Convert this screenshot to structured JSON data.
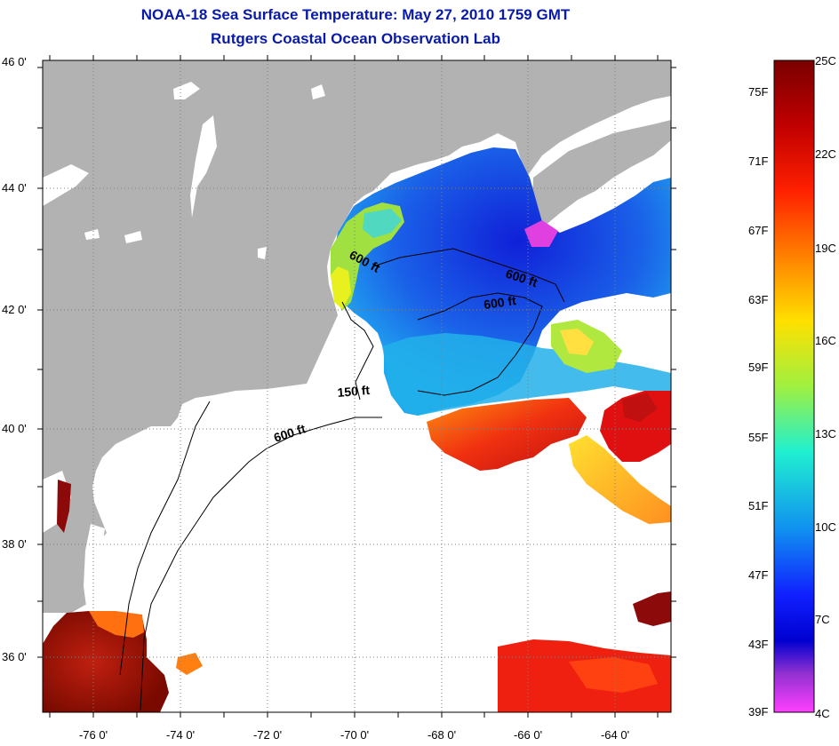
{
  "title": {
    "line1": "NOAA-18 Sea Surface Temperature:  May 27, 2010 1759 GMT",
    "line2": "Rutgers Coastal Ocean Observation Lab"
  },
  "map": {
    "lat_labels": [
      "46 0'",
      "44 0'",
      "42 0'",
      "40 0'",
      "38 0'",
      "36 0'"
    ],
    "lon_labels": [
      "-76 0'",
      "-74 0'",
      "-72 0'",
      "-70 0'",
      "-68 0'",
      "-66 0'",
      "-64 0'"
    ],
    "contour_labels": [
      "600 ft",
      "600 ft",
      "600 ft",
      "150 ft",
      "600 ft"
    ],
    "colors": {
      "land": "#b2b2b2",
      "no_data": "#ffffff",
      "cold": "#1530e0",
      "mid": "#1aa0ee",
      "warm": "#f04010",
      "hot": "#8c0a0a"
    }
  },
  "colorbar": {
    "fahrenheit": [
      "75F",
      "71F",
      "67F",
      "63F",
      "59F",
      "55F",
      "51F",
      "47F",
      "43F",
      "39F"
    ],
    "celsius": [
      "25C",
      "22C",
      "19C",
      "16C",
      "13C",
      "10C",
      "7C",
      "4C"
    ]
  }
}
